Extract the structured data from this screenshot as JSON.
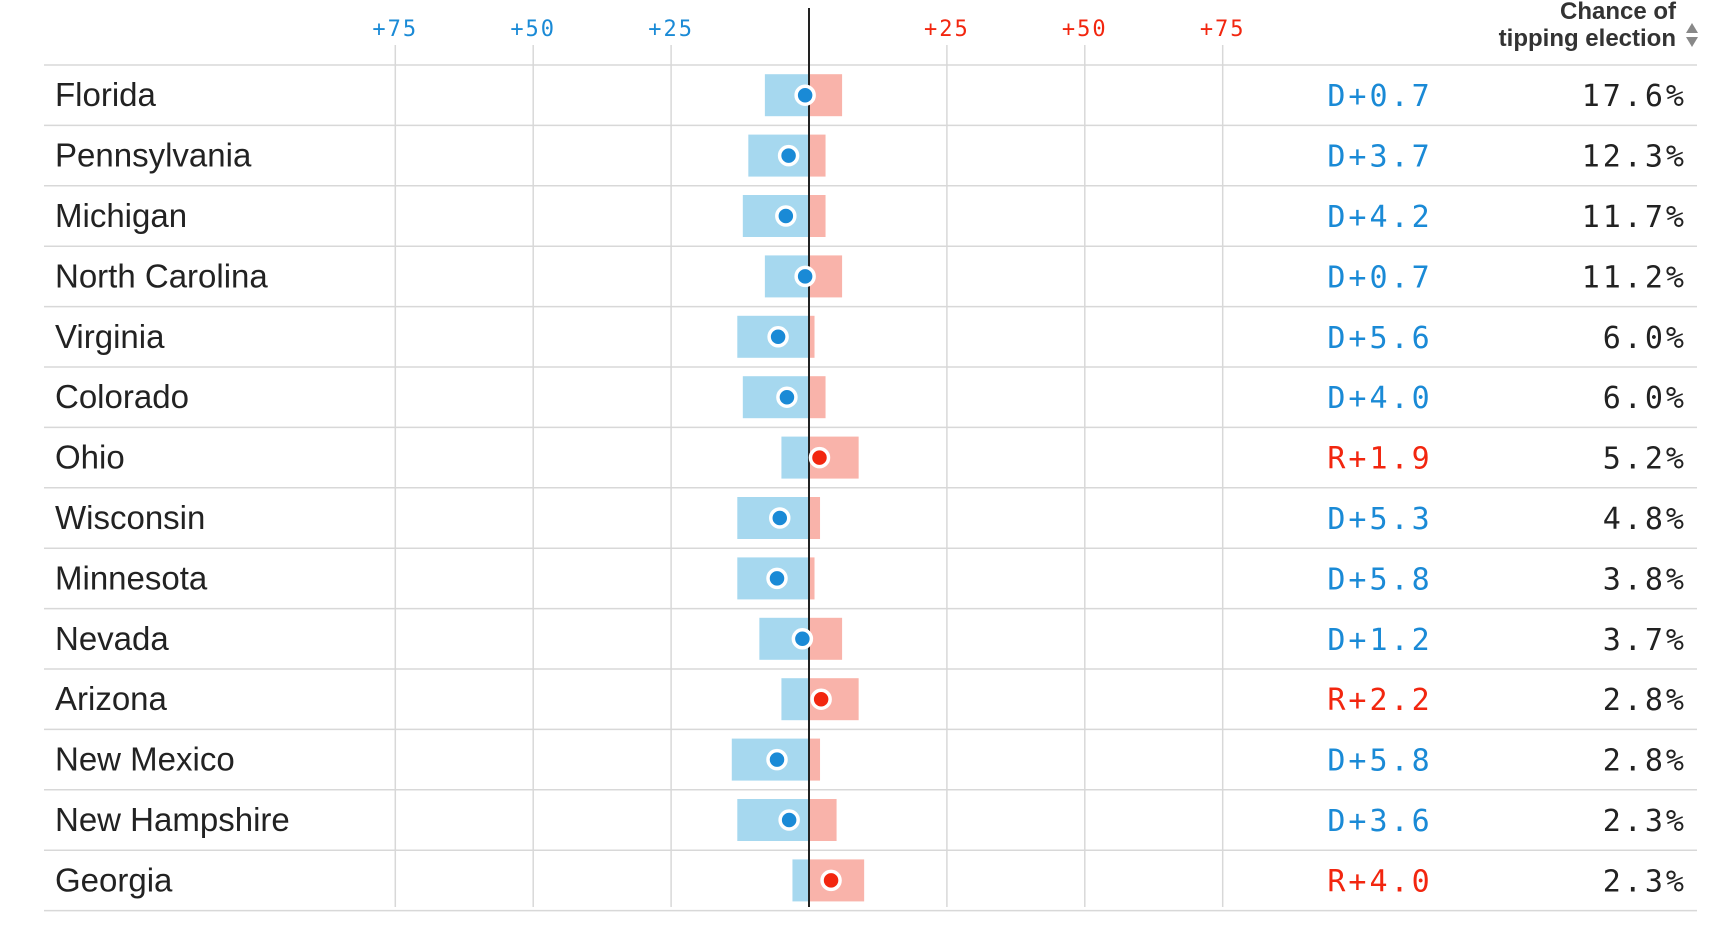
{
  "chart_data": {
    "type": "dot-range",
    "x_ticks": [
      {
        "value": -75,
        "label": "+75",
        "side": "D"
      },
      {
        "value": -50,
        "label": "+50",
        "side": "D"
      },
      {
        "value": -25,
        "label": "+25",
        "side": "D"
      },
      {
        "value": 25,
        "label": "+25",
        "side": "R"
      },
      {
        "value": 50,
        "label": "+50",
        "side": "R"
      },
      {
        "value": 75,
        "label": "+75",
        "side": "R"
      }
    ],
    "xlim": [
      -140,
      165
    ],
    "column_header": {
      "line1": "Chance of",
      "line2": "tipping election"
    },
    "colors": {
      "dem": "#1a8ad6",
      "rep": "#f2260f",
      "dem_bar": "#a6d8ef",
      "rep_bar": "#f9b3aa",
      "gridline": "#d8d8d8"
    },
    "rows": [
      {
        "state": "Florida",
        "margin": 0.7,
        "party": "D",
        "margin_label": "D+0.7",
        "range": [
          -8,
          6
        ],
        "tipping": "17.6%"
      },
      {
        "state": "Pennsylvania",
        "margin": 3.7,
        "party": "D",
        "margin_label": "D+3.7",
        "range": [
          -11,
          3
        ],
        "tipping": "12.3%"
      },
      {
        "state": "Michigan",
        "margin": 4.2,
        "party": "D",
        "margin_label": "D+4.2",
        "range": [
          -12,
          3
        ],
        "tipping": "11.7%"
      },
      {
        "state": "North Carolina",
        "margin": 0.7,
        "party": "D",
        "margin_label": "D+0.7",
        "range": [
          -8,
          6
        ],
        "tipping": "11.2%"
      },
      {
        "state": "Virginia",
        "margin": 5.6,
        "party": "D",
        "margin_label": "D+5.6",
        "range": [
          -13,
          1
        ],
        "tipping": "6.0%"
      },
      {
        "state": "Colorado",
        "margin": 4.0,
        "party": "D",
        "margin_label": "D+4.0",
        "range": [
          -12,
          3
        ],
        "tipping": "6.0%"
      },
      {
        "state": "Ohio",
        "margin": 1.9,
        "party": "R",
        "margin_label": "R+1.9",
        "range": [
          -5,
          9
        ],
        "tipping": "5.2%"
      },
      {
        "state": "Wisconsin",
        "margin": 5.3,
        "party": "D",
        "margin_label": "D+5.3",
        "range": [
          -13,
          2
        ],
        "tipping": "4.8%"
      },
      {
        "state": "Minnesota",
        "margin": 5.8,
        "party": "D",
        "margin_label": "D+5.8",
        "range": [
          -13,
          1
        ],
        "tipping": "3.8%"
      },
      {
        "state": "Nevada",
        "margin": 1.2,
        "party": "D",
        "margin_label": "D+1.2",
        "range": [
          -9,
          6
        ],
        "tipping": "3.7%"
      },
      {
        "state": "Arizona",
        "margin": 2.2,
        "party": "R",
        "margin_label": "R+2.2",
        "range": [
          -5,
          9
        ],
        "tipping": "2.8%"
      },
      {
        "state": "New Mexico",
        "margin": 5.8,
        "party": "D",
        "margin_label": "D+5.8",
        "range": [
          -14,
          2
        ],
        "tipping": "2.8%"
      },
      {
        "state": "New Hampshire",
        "margin": 3.6,
        "party": "D",
        "margin_label": "D+3.6",
        "range": [
          -13,
          5
        ],
        "tipping": "2.3%"
      },
      {
        "state": "Georgia",
        "margin": 4.0,
        "party": "R",
        "margin_label": "R+4.0",
        "range": [
          -3,
          10
        ],
        "tipping": "2.3%"
      }
    ]
  }
}
